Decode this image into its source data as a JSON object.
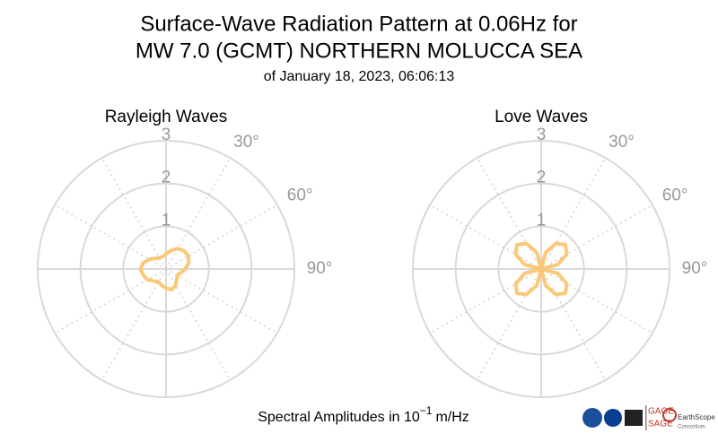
{
  "header": {
    "title": [
      "Surface-Wave Radiation Pattern at 0.06Hz for",
      "MW 7.0 (GCMT) NORTHERN MOLUCCA SEA"
    ],
    "subtitle": "of January 18, 2023, 06:06:13"
  },
  "caption": {
    "text": "Spectral Amplitudes in 10",
    "exponent": "−1",
    "unit": "m/Hz"
  },
  "logos": [
    "GAGE",
    "SAGE",
    "EarthScope",
    "Consortium"
  ],
  "chart_data": [
    {
      "type": "polar",
      "title": "Rayleigh Waves",
      "color": "#fbc878",
      "theta": [
        0,
        15,
        30,
        45,
        60,
        75,
        90,
        105,
        120,
        135,
        150,
        165,
        180,
        195,
        210,
        225,
        240,
        255,
        270,
        285,
        300,
        315,
        330,
        345
      ],
      "values": [
        0.35,
        0.45,
        0.55,
        0.6,
        0.6,
        0.55,
        0.45,
        0.35,
        0.3,
        0.35,
        0.45,
        0.5,
        0.45,
        0.4,
        0.35,
        0.4,
        0.5,
        0.55,
        0.6,
        0.55,
        0.45,
        0.35,
        0.3,
        0.3
      ],
      "rlim": [
        0,
        3
      ],
      "rticks": [
        1,
        2,
        3
      ],
      "thetagrid": [
        0,
        30,
        60,
        90,
        120,
        150,
        180,
        210,
        240,
        270,
        300,
        330
      ],
      "thetaticks": [
        {
          "value": 30,
          "label": "30°"
        },
        {
          "value": 60,
          "label": "60°"
        },
        {
          "value": 90,
          "label": "90°"
        }
      ]
    },
    {
      "type": "polar",
      "title": "Love Waves",
      "color": "#fbc878",
      "theta": [
        0,
        15,
        30,
        45,
        60,
        75,
        90,
        105,
        120,
        135,
        150,
        165,
        180,
        195,
        210,
        225,
        240,
        255,
        270,
        285,
        300,
        315,
        330,
        345
      ],
      "values": [
        0,
        0.4,
        0.69,
        0.8,
        0.69,
        0.4,
        0,
        0.4,
        0.69,
        0.8,
        0.69,
        0.4,
        0,
        0.4,
        0.69,
        0.8,
        0.69,
        0.4,
        0,
        0.4,
        0.69,
        0.8,
        0.69,
        0.4
      ],
      "rlim": [
        0,
        3
      ],
      "rticks": [
        1,
        2,
        3
      ],
      "thetagrid": [
        0,
        30,
        60,
        90,
        120,
        150,
        180,
        210,
        240,
        270,
        300,
        330
      ],
      "thetaticks": [
        {
          "value": 30,
          "label": "30°"
        },
        {
          "value": 60,
          "label": "60°"
        },
        {
          "value": 90,
          "label": "90°"
        }
      ]
    }
  ]
}
